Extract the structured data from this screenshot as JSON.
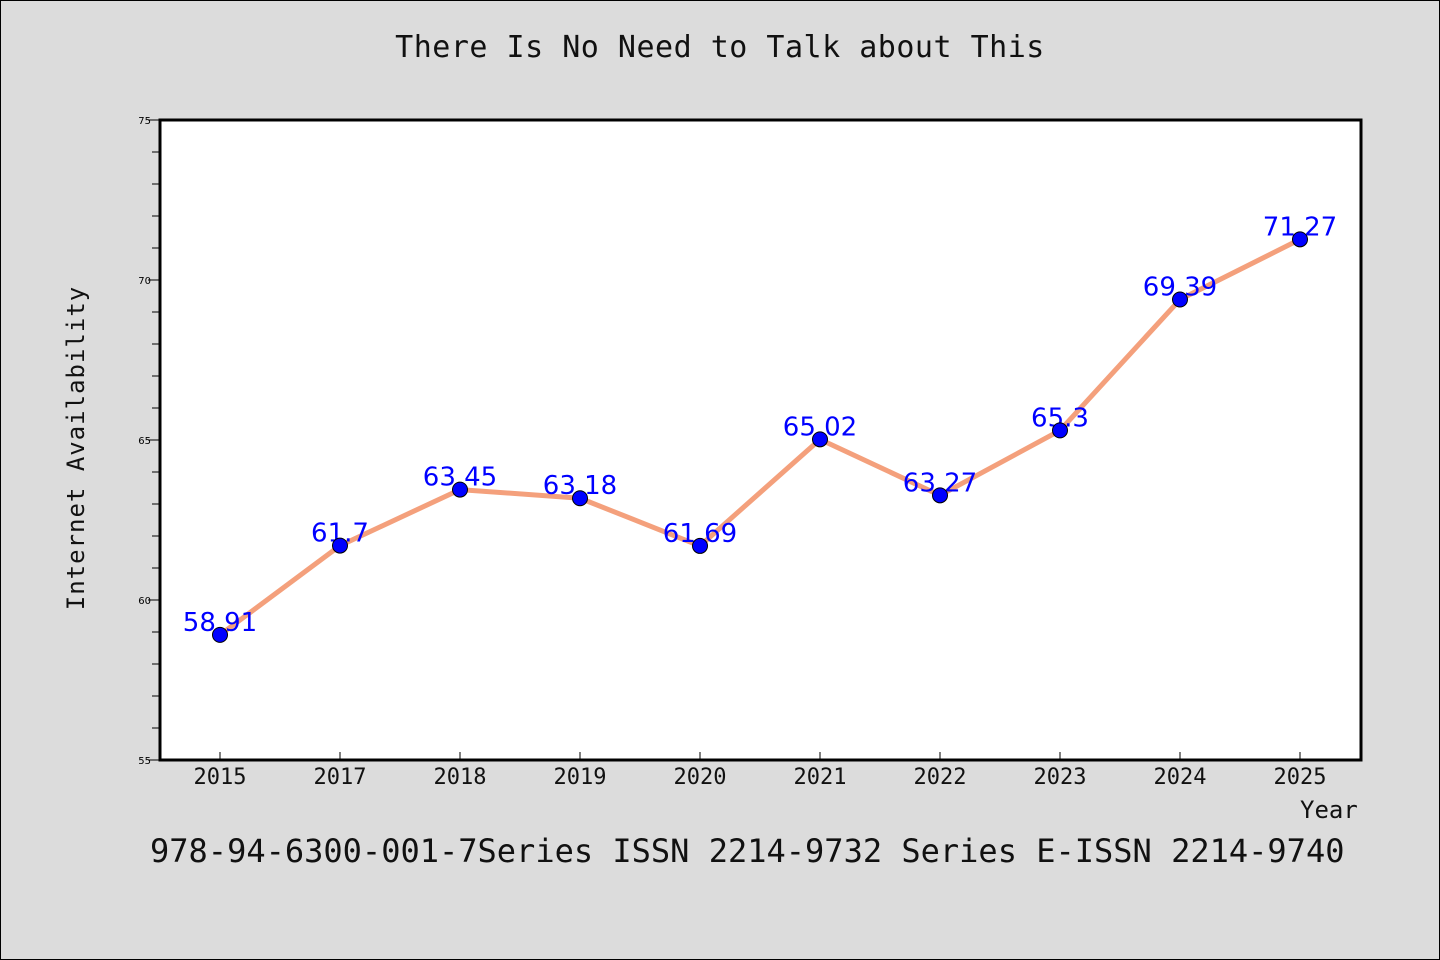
{
  "chart_data": {
    "type": "line",
    "title": "There Is No Need to Talk about This",
    "xlabel": "Year",
    "ylabel": "Internet Availability",
    "categories": [
      "2015",
      "2017",
      "2018",
      "2019",
      "2020",
      "2021",
      "2022",
      "2023",
      "2024",
      "2025"
    ],
    "series": [
      {
        "values": [
          58.91,
          61.7,
          63.45,
          63.18,
          61.69,
          65.02,
          63.27,
          65.3,
          69.39,
          71.27
        ],
        "data_labels": [
          "58.91",
          "61.7",
          "63.45",
          "63.18",
          "61.69",
          "65.02",
          "63.27",
          "65.3",
          "69.39",
          "71.27"
        ],
        "line_color": "#f4a07c",
        "marker_color": "#0000ff",
        "label_color": "#0000ff"
      }
    ],
    "y_ticks": [
      "55",
      "60",
      "65",
      "70",
      "75"
    ],
    "ylim": [
      55,
      75
    ],
    "grid": false,
    "legend": "none",
    "background": "#dcdcdc",
    "plot_background": "#ffffff"
  },
  "footer": {
    "text": "978-94-6300-001-7Series ISSN 2214-9732 Series E-ISSN 2214-9740"
  }
}
